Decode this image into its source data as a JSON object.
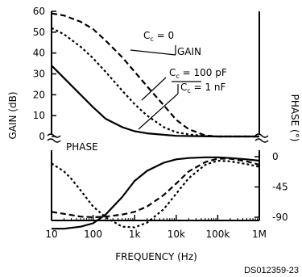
{
  "chart_data": {
    "type": "line",
    "x_scale": "log",
    "xlabel": "FREQUENCY (Hz)",
    "ylabel_left": "GAIN (dB)",
    "ylabel_right": "PHASE (°)",
    "x_ticks": [
      {
        "value": 10,
        "label": "10"
      },
      {
        "value": 100,
        "label": "100"
      },
      {
        "value": 1000,
        "label": "1k"
      },
      {
        "value": 10000,
        "label": "10k"
      },
      {
        "value": 100000,
        "label": "100k"
      },
      {
        "value": 1000000,
        "label": "1M"
      }
    ],
    "gain_axis": {
      "ylim": [
        0,
        60
      ],
      "ticks": [
        0,
        10,
        20,
        30,
        40,
        50,
        60
      ]
    },
    "phase_axis": {
      "ylim": [
        -120,
        10
      ],
      "ticks": [
        {
          "value": 0,
          "label": "0"
        },
        {
          "value": -45,
          "label": "-45"
        },
        {
          "value": -90,
          "label": "-90"
        }
      ]
    },
    "section_labels": {
      "gain": "GAIN",
      "phase": "PHASE"
    },
    "series_labels": {
      "cc0": "C = 0",
      "cc0_sub": "c",
      "cc100p": "C = 100 pF",
      "cc100p_sub": "c",
      "cc1n": "C = 1 nF",
      "cc1n_sub": "c"
    },
    "gain_series": [
      {
        "key": "cc0",
        "dash": "dashed",
        "x": [
          10,
          20,
          50,
          100,
          200,
          500,
          1000,
          2000,
          5000,
          10000,
          20000,
          50000,
          100000,
          200000,
          1000000
        ],
        "y": [
          59,
          58,
          55,
          51.5,
          46,
          38,
          31,
          24,
          15,
          8,
          3.5,
          0.5,
          0,
          0,
          0
        ]
      },
      {
        "key": "cc100p",
        "dash": "dotted",
        "x": [
          10,
          20,
          50,
          100,
          200,
          500,
          1000,
          2000,
          5000,
          10000,
          20000,
          50000,
          100000,
          1000000
        ],
        "y": [
          52,
          49,
          43,
          37.5,
          31,
          22,
          15.5,
          10,
          4.5,
          2,
          1,
          0.2,
          0,
          0
        ]
      },
      {
        "key": "cc1n",
        "dash": "solid",
        "x": [
          10,
          20,
          50,
          100,
          200,
          500,
          1000,
          2000,
          5000,
          10000,
          100000,
          1000000
        ],
        "y": [
          34,
          28,
          20,
          14,
          8.5,
          4.5,
          2.5,
          1.5,
          0.8,
          0.3,
          0,
          0
        ]
      }
    ],
    "phase_series": [
      {
        "key": "cc0",
        "dash": "dashed",
        "x": [
          10,
          20,
          50,
          100,
          200,
          500,
          1000,
          2000,
          5000,
          10000,
          20000,
          50000,
          100000,
          200000,
          500000,
          1000000
        ],
        "y": [
          -82,
          -85,
          -89,
          -90,
          -89,
          -86,
          -82,
          -74,
          -57,
          -40,
          -22,
          -8,
          -3,
          -3,
          -7,
          -12
        ]
      },
      {
        "key": "cc100p",
        "dash": "dotted",
        "x": [
          10,
          20,
          30,
          50,
          100,
          200,
          500,
          1000,
          2000,
          5000,
          10000,
          20000,
          50000,
          100000,
          200000,
          500000,
          1000000
        ],
        "y": [
          -10,
          -22,
          -33,
          -50,
          -74,
          -90,
          -104,
          -105,
          -98,
          -78,
          -55,
          -32,
          -12,
          -6,
          -7,
          -11,
          -15
        ]
      },
      {
        "key": "cc1n",
        "dash": "solid",
        "x": [
          10,
          20,
          50,
          100,
          200,
          500,
          1000,
          2000,
          5000,
          10000,
          20000,
          50000,
          100000,
          200000,
          500000,
          1000000
        ],
        "y": [
          -107,
          -107,
          -104,
          -99,
          -86,
          -60,
          -36,
          -21,
          -9,
          -4,
          -2,
          -1,
          -1,
          -2,
          -4,
          -6
        ]
      }
    ],
    "legend": "none",
    "grid": false
  },
  "footer_id": "DS012359-23"
}
